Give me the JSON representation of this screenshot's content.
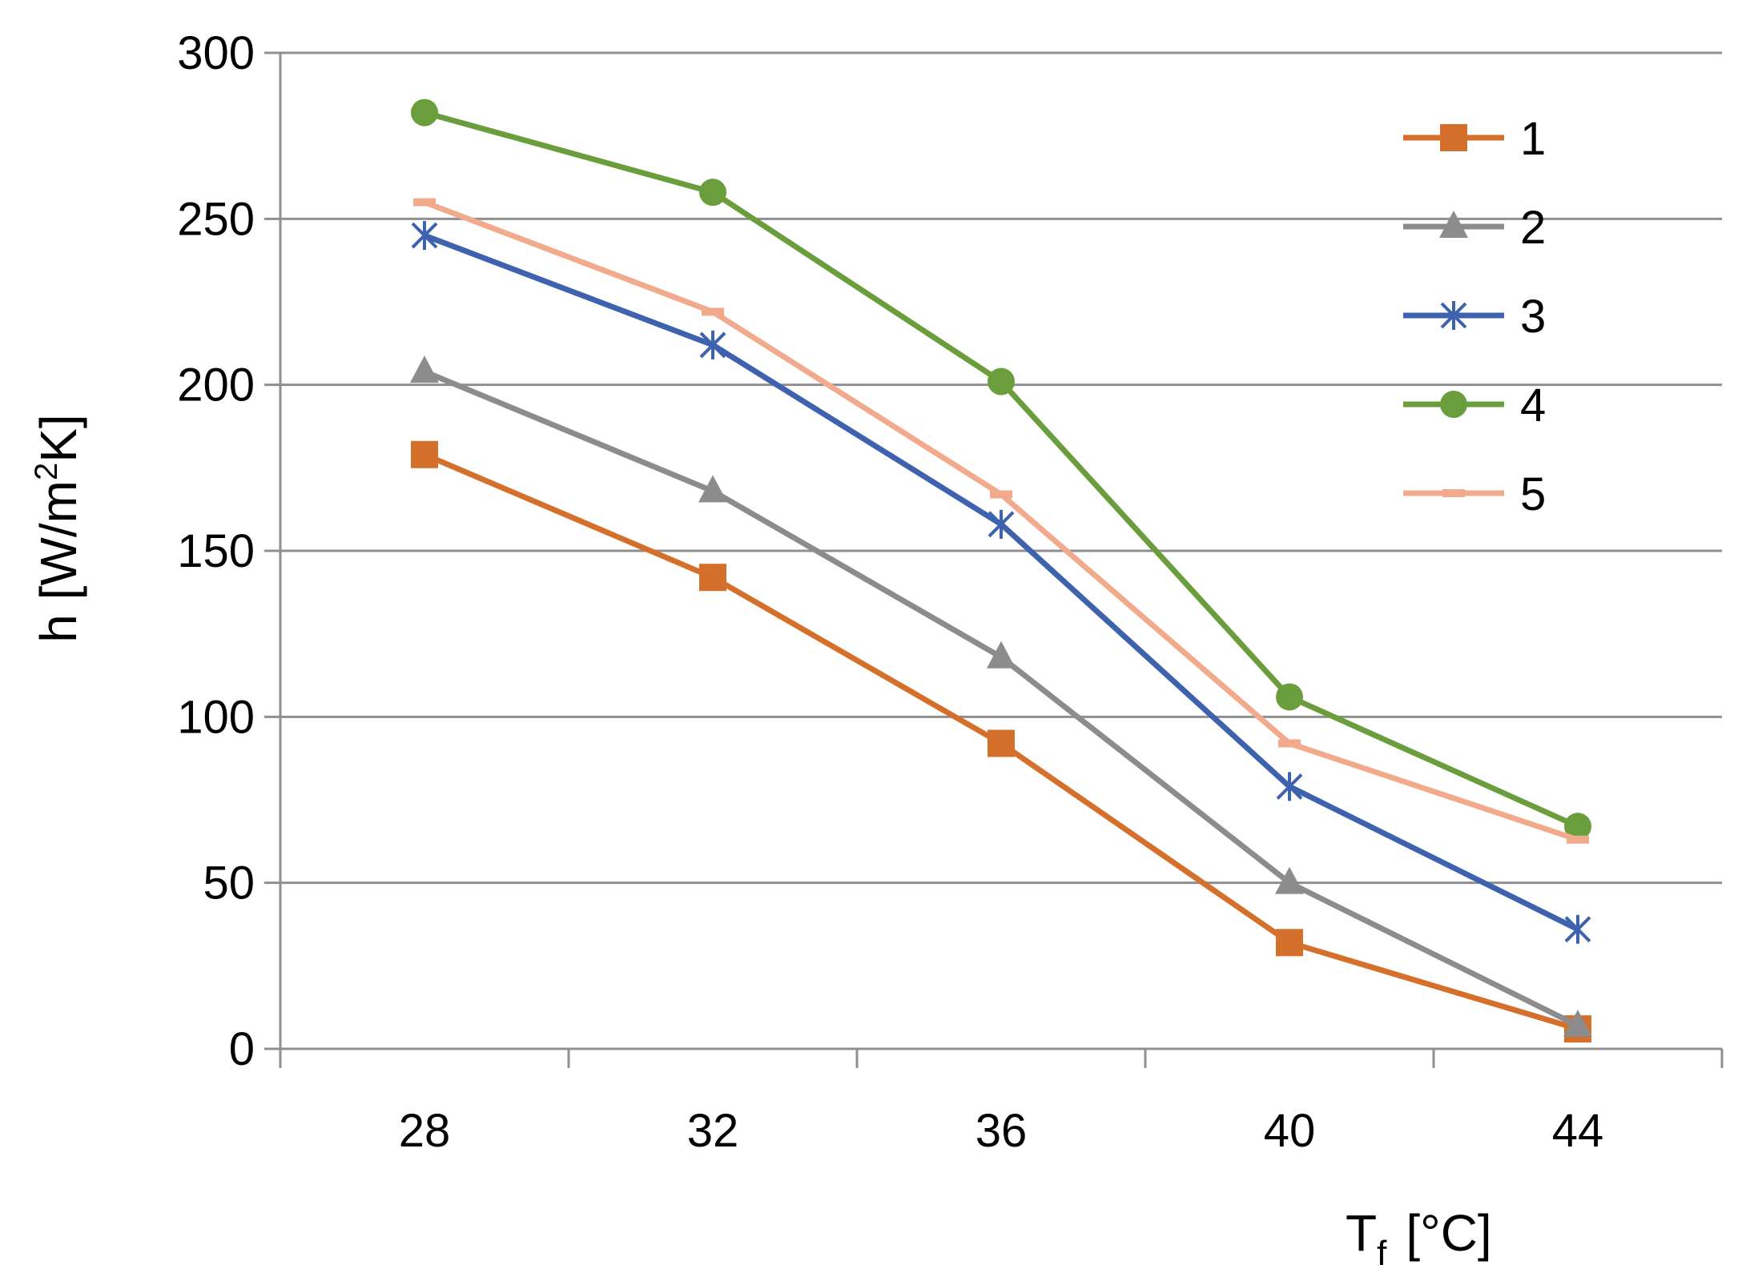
{
  "chart_data": {
    "type": "line",
    "title": "",
    "x": [
      28,
      32,
      36,
      40,
      44
    ],
    "ylim": [
      0,
      300
    ],
    "yticks": [
      0,
      50,
      100,
      150,
      200,
      250,
      300
    ],
    "xlabel_main": "T",
    "xlabel_sub": "f",
    "xlabel_unit": "[°C]",
    "ylabel_main": "h [W/m",
    "ylabel_sup": "2",
    "ylabel_end": "K]",
    "grid": true,
    "legend_position": "top-right",
    "series": [
      {
        "name": "1",
        "color": "#D4702C",
        "marker": "square",
        "values": [
          179,
          142,
          92,
          32,
          6
        ]
      },
      {
        "name": "2",
        "color": "#8C8C8C",
        "marker": "triangle",
        "values": [
          204,
          168,
          118,
          50,
          7
        ]
      },
      {
        "name": "3",
        "color": "#3F62AE",
        "marker": "star",
        "values": [
          245,
          212,
          158,
          79,
          36
        ]
      },
      {
        "name": "4",
        "color": "#6A9E3C",
        "marker": "circle",
        "values": [
          282,
          258,
          201,
          106,
          67
        ]
      },
      {
        "name": "5",
        "color": "#F2AA8C",
        "marker": "dash",
        "values": [
          255,
          222,
          167,
          92,
          63
        ]
      }
    ]
  }
}
